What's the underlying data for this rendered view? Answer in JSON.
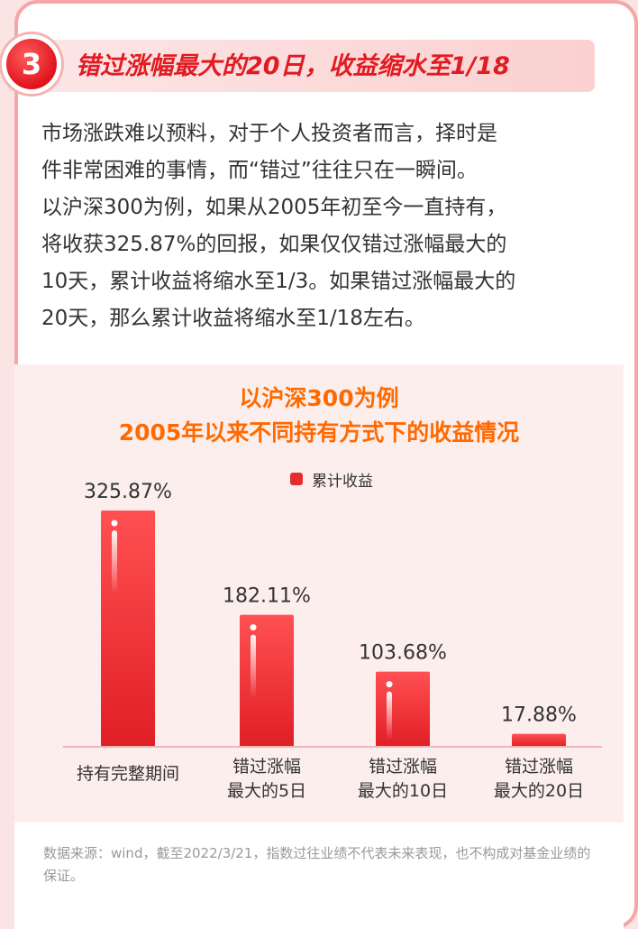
{
  "section": {
    "number": "3",
    "title": "错过涨幅最大的20日，收益缩水至1/18"
  },
  "intro_lines": [
    "市场涨跌难以预料，对于个人投资者而言，择时是",
    "件非常困难的事情，而“错过”往往只在一瞬间。",
    "以沪深300为例，如果从2005年初至今一直持有，",
    "将收获325.87%的回报，如果仅仅错过涨幅最大的",
    "10天，累计收益将缩水至1/3。如果错过涨幅最大的",
    "20天，那么累计收益将缩水至1/18左右。"
  ],
  "chart_data": {
    "type": "bar",
    "title": "以沪深300为例",
    "subtitle": "2005年以来不同持有方式下的收益情况",
    "legend": {
      "label": "累计收益",
      "position": "top-center"
    },
    "categories": [
      [
        "持有完整期间"
      ],
      [
        "错过涨幅",
        "最大的5日"
      ],
      [
        "错过涨幅",
        "最大的10日"
      ],
      [
        "错过涨幅",
        "最大的20日"
      ]
    ],
    "series": [
      {
        "name": "累计收益",
        "values": [
          325.87,
          182.11,
          103.68,
          17.88
        ],
        "labels": [
          "325.87%",
          "182.11%",
          "103.68%",
          "17.88%"
        ]
      }
    ],
    "ylim": [
      0,
      325.87
    ],
    "grid": false,
    "colors": {
      "bar_top": "#ff4d4f",
      "bar_bottom": "#e01f26",
      "axis": "#f2b5b5"
    }
  },
  "source_note": "数据来源：wind，截至2022/3/21，指数过往业绩不代表未来表现，也不构成对基金业绩的保证。"
}
